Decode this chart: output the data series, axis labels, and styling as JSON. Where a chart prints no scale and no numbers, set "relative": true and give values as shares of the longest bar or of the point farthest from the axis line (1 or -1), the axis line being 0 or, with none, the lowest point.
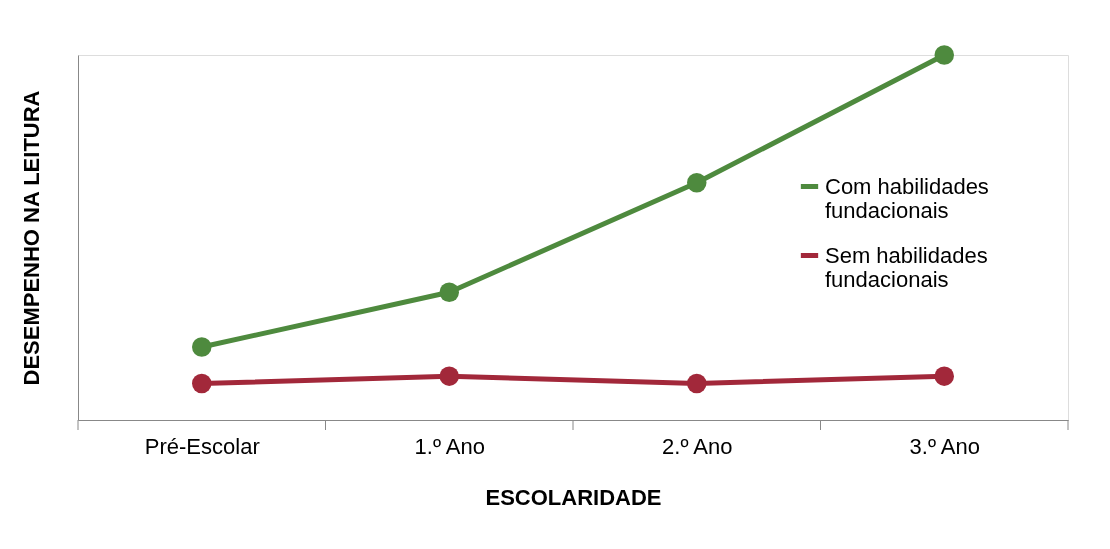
{
  "chart_data": {
    "type": "line",
    "xlabel": "ESCOLARIDADE",
    "ylabel": "DESEMPENHO NA LEITURA",
    "relative": true,
    "categories": [
      "Pré-Escolar",
      "1.º Ano",
      "2.º Ano",
      "3.º Ano"
    ],
    "series": [
      {
        "name": "Com habilidades fundacionais",
        "color": "#4e8a3e",
        "values": [
          0.2,
          0.35,
          0.65,
          1.0
        ]
      },
      {
        "name": "Sem habilidades fundacionais",
        "color": "#a2283a",
        "values": [
          0.1,
          0.12,
          0.1,
          0.12
        ]
      }
    ],
    "marker": "circle",
    "line_style": "solid",
    "grid": false,
    "legend": "right"
  }
}
